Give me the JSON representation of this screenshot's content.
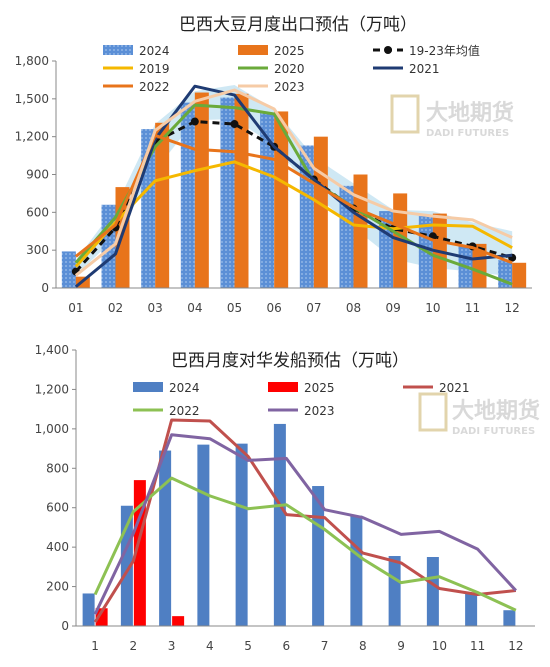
{
  "watermark": {
    "cn": "大地期货",
    "en": "DADI FUTURES"
  },
  "chart_data": [
    {
      "type": "bar",
      "title": "巴西大豆月度出口预估（万吨）",
      "categories": [
        "01",
        "02",
        "03",
        "04",
        "05",
        "06",
        "07",
        "08",
        "09",
        "10",
        "11",
        "12"
      ],
      "y_ticks": [
        "0",
        "300",
        "600",
        "900",
        "1,200",
        "1,500",
        "1,800"
      ],
      "ylim": [
        0,
        1800
      ],
      "grid": false,
      "legend_position": "top",
      "range_band": {
        "low": [
          100,
          400,
          930,
          1330,
          1340,
          1130,
          750,
          480,
          230,
          160,
          130,
          90
        ],
        "high": [
          220,
          640,
          1300,
          1560,
          1610,
          1420,
          1040,
          830,
          620,
          610,
          520,
          450
        ]
      },
      "bars": [
        {
          "name": "2024",
          "color": "#5b8fd6",
          "values": [
            290,
            660,
            1260,
            1470,
            1510,
            1390,
            1130,
            810,
            610,
            570,
            340,
            220
          ]
        },
        {
          "name": "2025",
          "color": "#e8741b",
          "values": [
            90,
            800,
            1310,
            1550,
            1540,
            1400,
            1200,
            900,
            750,
            590,
            350,
            200
          ]
        }
      ],
      "lines": [
        {
          "name": "19-23年均值",
          "color": "#111111",
          "dashed": true,
          "marker": true,
          "values": [
            130,
            480,
            1160,
            1320,
            1300,
            1120,
            860,
            630,
            470,
            410,
            330,
            240
          ]
        },
        {
          "name": "2019",
          "color": "#f5b800",
          "values": [
            170,
            520,
            850,
            930,
            1000,
            880,
            700,
            500,
            470,
            500,
            490,
            320
          ]
        },
        {
          "name": "2020",
          "color": "#6aaa3a",
          "values": [
            200,
            560,
            1120,
            1450,
            1430,
            1380,
            840,
            640,
            450,
            260,
            150,
            30
          ]
        },
        {
          "name": "2021",
          "color": "#1f3b73",
          "values": [
            10,
            270,
            1180,
            1600,
            1530,
            1120,
            860,
            600,
            400,
            300,
            230,
            260
          ]
        },
        {
          "name": "2022",
          "color": "#e8741b",
          "values": [
            250,
            500,
            1210,
            1100,
            1080,
            1020,
            830,
            640,
            510,
            380,
            320,
            200
          ]
        },
        {
          "name": "2023",
          "color": "#f6cba6",
          "values": [
            100,
            350,
            1250,
            1480,
            1570,
            1420,
            950,
            740,
            610,
            570,
            540,
            400
          ]
        }
      ]
    },
    {
      "type": "bar",
      "title": "巴西月度对华发船预估（万吨）",
      "categories": [
        "1",
        "2",
        "3",
        "4",
        "5",
        "6",
        "7",
        "8",
        "9",
        "10",
        "11",
        "12"
      ],
      "y_ticks": [
        "0",
        "200",
        "400",
        "600",
        "800",
        "1,000",
        "1,200",
        "1,400"
      ],
      "ylim": [
        0,
        1400
      ],
      "grid": false,
      "legend_position": "top",
      "bars": [
        {
          "name": "2024",
          "color": "#4f7fc3",
          "values": [
            165,
            610,
            890,
            920,
            925,
            1025,
            710,
            560,
            355,
            350,
            165,
            80
          ]
        },
        {
          "name": "2025",
          "color": "#ff0000",
          "values": [
            90,
            740,
            50,
            null,
            null,
            null,
            null,
            null,
            null,
            null,
            null,
            null
          ]
        }
      ],
      "lines": [
        {
          "name": "2021",
          "color": "#c0504d",
          "values": [
            20,
            330,
            1045,
            1040,
            860,
            565,
            550,
            370,
            320,
            190,
            160,
            180
          ]
        },
        {
          "name": "2022",
          "color": "#8dc153",
          "values": [
            160,
            580,
            750,
            660,
            595,
            615,
            490,
            340,
            220,
            250,
            170,
            80
          ]
        },
        {
          "name": "2023",
          "color": "#8064a2",
          "values": [
            60,
            470,
            970,
            950,
            840,
            850,
            590,
            550,
            465,
            480,
            390,
            180
          ]
        }
      ]
    }
  ]
}
